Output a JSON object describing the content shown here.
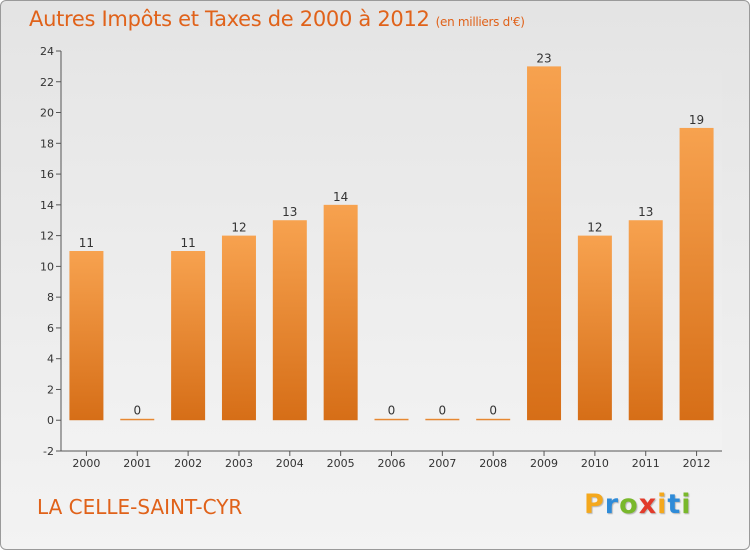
{
  "page": {
    "title": "Autres Impôts et Taxes de 2000 à 2012",
    "subtitle": "(en milliers d'€)",
    "place": "LA CELLE-SAINT-CYR",
    "logo": {
      "letters": [
        "P",
        "r",
        "o",
        "x",
        "i",
        "t",
        "i"
      ],
      "colors": [
        "#f4a81d",
        "#2e8bd8",
        "#79b82b",
        "#e23b2b",
        "#f4a81d",
        "#2e8bd8",
        "#79b82b"
      ]
    }
  },
  "chart_data": {
    "type": "bar",
    "title": "Autres Impôts et Taxes de 2000 à 2012",
    "subtitle": "(en milliers d'€)",
    "categories": [
      "2000",
      "2001",
      "2002",
      "2003",
      "2004",
      "2005",
      "2006",
      "2007",
      "2008",
      "2009",
      "2010",
      "2011",
      "2012"
    ],
    "values": [
      11,
      0,
      11,
      12,
      13,
      14,
      0,
      0,
      0,
      23,
      12,
      13,
      19
    ],
    "ylim": [
      -2,
      24
    ],
    "yticks": [
      -2,
      0,
      2,
      4,
      6,
      8,
      10,
      12,
      14,
      16,
      18,
      20,
      22,
      24
    ],
    "grid": false,
    "bar_color_top": "#f7a24f",
    "bar_color_bottom": "#d66e17"
  }
}
